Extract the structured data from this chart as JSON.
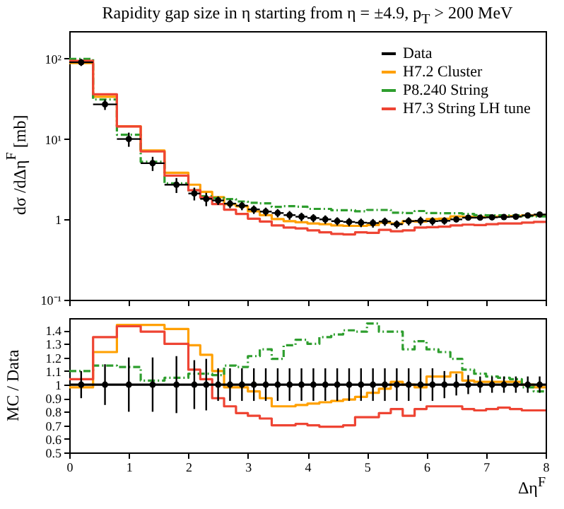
{
  "chart_data": [
    {
      "type": "histogram",
      "title": "Rapidity gap size in η starting from η = ±4.9, p$_{T}$ > 200 MeV",
      "ylabel": "dσ /dΔη$^{F}$ [mb]",
      "log": "y",
      "xlim": [
        0,
        8
      ],
      "xticks": [
        0,
        1,
        2,
        3,
        4,
        5,
        6,
        7,
        8
      ],
      "ylim": [
        0.1,
        220
      ],
      "yticks": [
        {
          "value": 0.1,
          "label": "10⁻¹"
        },
        {
          "value": 1,
          "label": "1"
        },
        {
          "value": 10,
          "label": "10¹"
        },
        {
          "value": 100,
          "label": "10²"
        }
      ],
      "tick_labels": "y",
      "legend": "top right",
      "bins": [
        0,
        0.4,
        0.8,
        1.2,
        1.6,
        2,
        2.2,
        2.4,
        2.6,
        2.8,
        3,
        3.2,
        3.4,
        3.6,
        3.8,
        4,
        4.2,
        4.4,
        4.6,
        4.8,
        5,
        5.2,
        5.4,
        5.6,
        5.8,
        6,
        6.2,
        6.4,
        6.6,
        6.8,
        7,
        7.2,
        7.4,
        7.6,
        7.8,
        8
      ],
      "series": [
        {
          "name": "Data",
          "type": "scatter",
          "color": "#000000",
          "marker": "circle",
          "x": [
            0.2,
            0.6,
            1,
            1.4,
            1.8,
            2.1,
            2.3,
            2.5,
            2.7,
            2.9,
            3.1,
            3.3,
            3.5,
            3.7,
            3.9,
            4.1,
            4.3,
            4.5,
            4.7,
            4.9,
            5.1,
            5.3,
            5.5,
            5.7,
            5.9,
            6.1,
            6.3,
            6.5,
            6.7,
            6.9,
            7.1,
            7.3,
            7.5,
            7.7,
            7.9
          ],
          "values": [
            90,
            27,
            10,
            5,
            2.7,
            2.1,
            1.8,
            1.72,
            1.57,
            1.48,
            1.33,
            1.25,
            1.2,
            1.13,
            1.08,
            1.04,
            1,
            0.95,
            0.93,
            0.91,
            0.9,
            0.94,
            0.87,
            0.95,
            0.96,
            0.95,
            0.96,
            1,
            1.05,
            1.05,
            1.06,
            1.07,
            1.08,
            1.12,
            1.15
          ],
          "errors": [
            9,
            4,
            2,
            1,
            0.57,
            0.38,
            0.34,
            0.21,
            0.19,
            0.18,
            0.16,
            0.15,
            0.14,
            0.14,
            0.13,
            0.12,
            0.12,
            0.11,
            0.11,
            0.11,
            0.11,
            0.11,
            0.1,
            0.11,
            0.12,
            0.11,
            0.1,
            0.08,
            0.07,
            0.06,
            0.06,
            0.06,
            0.06,
            0.07,
            0.07
          ],
          "xerrors": [
            0.2,
            0.2,
            0.2,
            0.2,
            0.2,
            0.1,
            0.1,
            0.1,
            0.1,
            0.1,
            0.1,
            0.1,
            0.1,
            0.1,
            0.1,
            0.1,
            0.1,
            0.1,
            0.1,
            0.1,
            0.1,
            0.1,
            0.1,
            0.1,
            0.1,
            0.1,
            0.1,
            0.1,
            0.1,
            0.1,
            0.1,
            0.1,
            0.1,
            0.1,
            0.1
          ]
        },
        {
          "name": "H7.2 Cluster",
          "color": "#ffa000",
          "values": [
            88,
            33.5,
            14.4,
            7.2,
            3.8,
            2.7,
            2.2,
            1.89,
            1.54,
            1.45,
            1.26,
            1.13,
            1.01,
            0.95,
            0.92,
            0.89,
            0.87,
            0.84,
            0.83,
            0.83,
            0.85,
            0.91,
            0.89,
            0.95,
            0.94,
            1.01,
            1.02,
            1.09,
            1.08,
            1.07,
            1.08,
            1.09,
            1.1,
            1.12,
            1.13
          ]
        },
        {
          "name": "P8.240 String",
          "color": "#2e9e2e",
          "line_style": "dashed",
          "values": [
            99,
            31,
            11.3,
            5.2,
            2.8,
            2.3,
            1.94,
            1.84,
            1.79,
            1.67,
            1.61,
            1.58,
            1.43,
            1.46,
            1.44,
            1.35,
            1.35,
            1.3,
            1.3,
            1.26,
            1.31,
            1.31,
            1.21,
            1.2,
            1.27,
            1.2,
            1.19,
            1.19,
            1.17,
            1.13,
            1.12,
            1.12,
            1.12,
            1.1,
            1.09
          ]
        },
        {
          "name": "H7.3 String LH tune",
          "color": "#ee4433",
          "values": [
            94,
            36,
            14.3,
            7,
            3.5,
            2.3,
            1.87,
            1.55,
            1.32,
            1.17,
            1.02,
            0.94,
            0.84,
            0.79,
            0.77,
            0.73,
            0.69,
            0.66,
            0.65,
            0.69,
            0.68,
            0.74,
            0.71,
            0.73,
            0.79,
            0.8,
            0.81,
            0.84,
            0.86,
            0.85,
            0.87,
            0.89,
            0.89,
            0.91,
            0.93
          ]
        }
      ]
    },
    {
      "type": "histogram",
      "xlabel": "Δη$^{F}$",
      "ylabel": "MC / Data",
      "xlim": [
        0,
        8
      ],
      "xticks": [
        0,
        1,
        2,
        3,
        4,
        5,
        6,
        7,
        8
      ],
      "ylim": [
        0.5,
        1.49
      ],
      "yticks": [
        0.5,
        0.6,
        0.7,
        0.8,
        0.9,
        1,
        1.1,
        1.2,
        1.3,
        1.4
      ],
      "bins": [
        0,
        0.4,
        0.8,
        1.2,
        1.6,
        2,
        2.2,
        2.4,
        2.6,
        2.8,
        3,
        3.2,
        3.4,
        3.6,
        3.8,
        4,
        4.2,
        4.4,
        4.6,
        4.8,
        5,
        5.2,
        5.4,
        5.6,
        5.8,
        6,
        6.2,
        6.4,
        6.6,
        6.8,
        7,
        7.2,
        7.4,
        7.6,
        7.8,
        8
      ],
      "ref_lines": [
        {
          "axis": "y",
          "value": 1,
          "color": "#000000"
        }
      ],
      "series": [
        {
          "type": "scatter",
          "color": "#000000",
          "marker": "circle",
          "x": [
            0.2,
            0.6,
            1,
            1.4,
            1.8,
            2.1,
            2.3,
            2.5,
            2.7,
            2.9,
            3.1,
            3.3,
            3.5,
            3.7,
            3.9,
            4.1,
            4.3,
            4.5,
            4.7,
            4.9,
            5.1,
            5.3,
            5.5,
            5.7,
            5.9,
            6.1,
            6.3,
            6.5,
            6.7,
            6.9,
            7.1,
            7.3,
            7.5,
            7.7,
            7.9
          ],
          "values": [
            1,
            1,
            1,
            1,
            1,
            1,
            1,
            1,
            1,
            1,
            1,
            1,
            1,
            1,
            1,
            1,
            1,
            1,
            1,
            1,
            1,
            1,
            1,
            1,
            1,
            1,
            1,
            1,
            1,
            1,
            1,
            1,
            1,
            1,
            1
          ],
          "errors": [
            0.1,
            0.15,
            0.2,
            0.2,
            0.21,
            0.18,
            0.19,
            0.12,
            0.12,
            0.12,
            0.12,
            0.12,
            0.12,
            0.12,
            0.12,
            0.12,
            0.12,
            0.12,
            0.12,
            0.12,
            0.12,
            0.12,
            0.12,
            0.12,
            0.12,
            0.12,
            0.1,
            0.08,
            0.07,
            0.06,
            0.06,
            0.06,
            0.06,
            0.06,
            0.06
          ]
        },
        {
          "color": "#ffa000",
          "values": [
            0.98,
            1.24,
            1.44,
            1.44,
            1.41,
            1.29,
            1.22,
            1.1,
            0.98,
            0.98,
            0.95,
            0.9,
            0.84,
            0.84,
            0.85,
            0.86,
            0.87,
            0.88,
            0.89,
            0.91,
            0.94,
            0.97,
            1.02,
            1,
            0.98,
            1.06,
            1.06,
            1.09,
            1.03,
            1.02,
            1.02,
            1.02,
            1.02,
            1,
            0.98
          ]
        },
        {
          "color": "#2e9e2e",
          "line_style": "dashed",
          "values": [
            1.1,
            1.14,
            1.13,
            1.03,
            1.05,
            1.08,
            1.08,
            1.07,
            1.14,
            1.13,
            1.21,
            1.26,
            1.19,
            1.29,
            1.33,
            1.3,
            1.35,
            1.37,
            1.4,
            1.39,
            1.45,
            1.39,
            1.39,
            1.26,
            1.32,
            1.26,
            1.24,
            1.19,
            1.11,
            1.08,
            1.06,
            1.05,
            1.04,
            0.98,
            0.95
          ]
        },
        {
          "color": "#ee4433",
          "values": [
            1.04,
            1.35,
            1.43,
            1.39,
            1.3,
            1.11,
            1.04,
            0.9,
            0.84,
            0.79,
            0.77,
            0.75,
            0.7,
            0.7,
            0.71,
            0.7,
            0.69,
            0.69,
            0.7,
            0.76,
            0.76,
            0.79,
            0.82,
            0.77,
            0.82,
            0.84,
            0.84,
            0.84,
            0.82,
            0.81,
            0.82,
            0.83,
            0.82,
            0.81,
            0.81
          ]
        }
      ]
    }
  ]
}
